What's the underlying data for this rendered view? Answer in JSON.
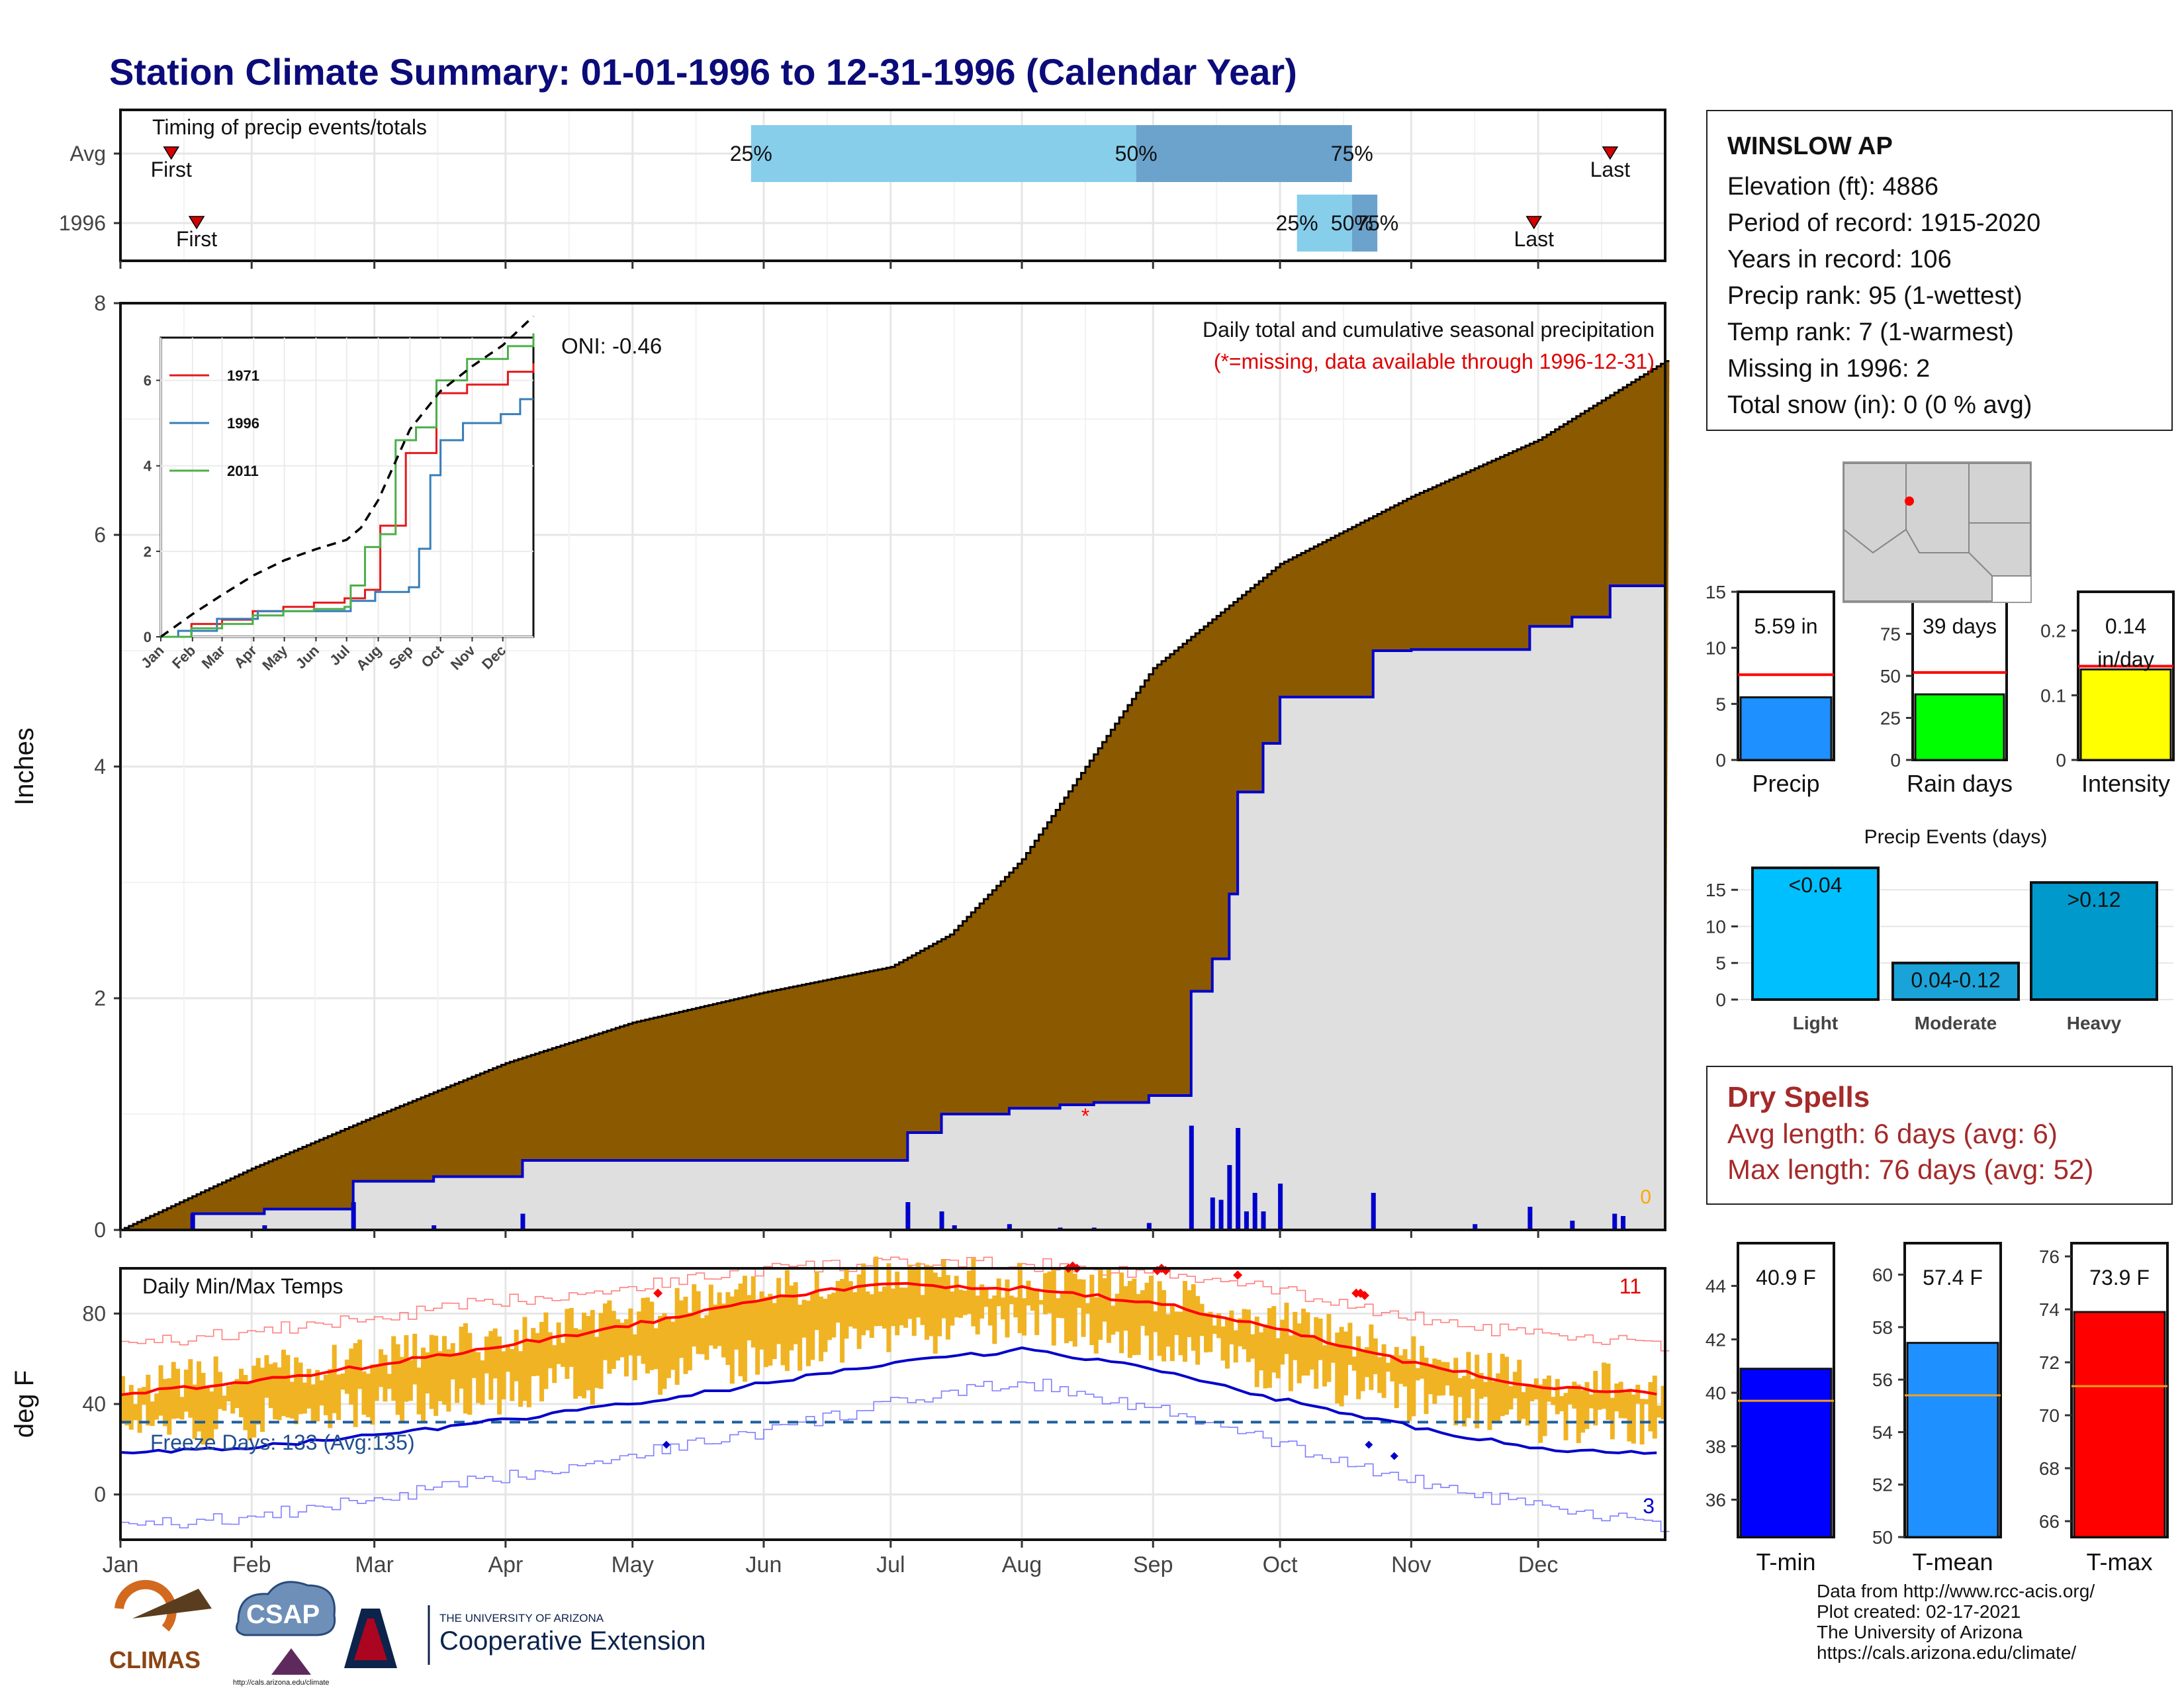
{
  "title": "Station Climate Summary: 01-01-1996 to 12-31-1996 (Calendar Year)",
  "station": {
    "name": "WINSLOW AP",
    "elevation": "Elevation (ft): 4886",
    "period": "Period of record: 1915-2020",
    "years": "Years in record: 106",
    "precip_rank": "Precip rank: 95 (1-wettest)",
    "temp_rank": "Temp rank: 7 (1-warmest)",
    "missing": "Missing in 1996: 2",
    "snow": "Total snow (in): 0 (0 % avg)"
  },
  "dry_spells": {
    "heading": "Dry Spells",
    "avg": "Avg length: 6 days (avg: 6)",
    "max": "Max length: 76 days (avg: 52)"
  },
  "credits": [
    "Data from http://www.rcc-acis.org/",
    "Plot created: 02-17-2021",
    "The University of Arizona",
    "https://cals.arizona.edu/climate/"
  ],
  "logos": {
    "climas": "CLIMAS",
    "csap": "CSAP",
    "csap_url": "http://cals.arizona.edu/climate",
    "ua_line1": "THE UNIVERSITY OF ARIZONA",
    "ua_line2": "Cooperative Extension"
  },
  "months": [
    "Jan",
    "Feb",
    "Mar",
    "Apr",
    "May",
    "Jun",
    "Jul",
    "Aug",
    "Sep",
    "Oct",
    "Nov",
    "Dec"
  ],
  "chart_data": [
    {
      "id": "timing",
      "type": "bar",
      "title": "Timing of precip events/totals",
      "rows": [
        {
          "label": "Avg",
          "first_day": 12,
          "q25_day": 149,
          "q50_day": 240,
          "q75_day": 291,
          "last_day": 352,
          "first_label": "First",
          "last_label": "Last"
        },
        {
          "label": "1996",
          "first_day": 18,
          "q25_day": 278,
          "q50_day": 291,
          "q75_day": 297,
          "last_day": 334,
          "first_label": "First",
          "last_label": "Last"
        }
      ],
      "quartile_labels": [
        "25%",
        "50%",
        "75%"
      ],
      "colors": {
        "light": "#87ceeb",
        "dark": "#6ba3cc",
        "marker": "#d40000"
      }
    },
    {
      "id": "precip",
      "type": "area",
      "title": "Daily total and cumulative seasonal precipitation",
      "subtitle": "(*=missing, data available through 1996-12-31)",
      "ylabel": "Inches",
      "ylim": [
        0,
        8
      ],
      "yticks": [
        0,
        2,
        4,
        6,
        8
      ],
      "oni": "ONI: -0.46",
      "missing_count": "0",
      "cum_avg": [
        [
          0,
          0
        ],
        [
          31,
          0.53
        ],
        [
          60,
          0.98
        ],
        [
          91,
          1.44
        ],
        [
          121,
          1.79
        ],
        [
          152,
          2.05
        ],
        [
          182,
          2.27
        ],
        [
          196,
          2.55
        ],
        [
          213,
          3.2
        ],
        [
          244,
          4.85
        ],
        [
          274,
          5.75
        ],
        [
          305,
          6.33
        ],
        [
          335,
          6.82
        ],
        [
          365,
          7.5
        ]
      ],
      "cum_1996": [
        [
          0,
          0
        ],
        [
          17,
          0
        ],
        [
          17,
          0.14
        ],
        [
          34,
          0.14
        ],
        [
          34,
          0.18
        ],
        [
          55,
          0.18
        ],
        [
          55,
          0.42
        ],
        [
          74,
          0.42
        ],
        [
          74,
          0.46
        ],
        [
          95,
          0.46
        ],
        [
          95,
          0.6
        ],
        [
          186,
          0.6
        ],
        [
          186,
          0.84
        ],
        [
          194,
          0.84
        ],
        [
          194,
          1.0
        ],
        [
          210,
          1.0
        ],
        [
          210,
          1.05
        ],
        [
          222,
          1.05
        ],
        [
          222,
          1.08
        ],
        [
          230,
          1.08
        ],
        [
          230,
          1.1
        ],
        [
          243,
          1.1
        ],
        [
          243,
          1.16
        ],
        [
          253,
          1.16
        ],
        [
          253,
          2.06
        ],
        [
          258,
          2.06
        ],
        [
          258,
          2.34
        ],
        [
          262,
          2.34
        ],
        [
          262,
          2.9
        ],
        [
          264,
          2.9
        ],
        [
          264,
          3.78
        ],
        [
          270,
          3.78
        ],
        [
          270,
          4.2
        ],
        [
          274,
          4.2
        ],
        [
          274,
          4.6
        ],
        [
          296,
          4.6
        ],
        [
          296,
          5.0
        ],
        [
          305,
          5.0
        ],
        [
          305,
          5.01
        ],
        [
          333,
          5.01
        ],
        [
          333,
          5.21
        ],
        [
          343,
          5.21
        ],
        [
          343,
          5.29
        ],
        [
          352,
          5.29
        ],
        [
          352,
          5.56
        ],
        [
          365,
          5.56
        ]
      ],
      "daily_1996": [
        [
          17,
          0.14
        ],
        [
          34,
          0.04
        ],
        [
          55,
          0.24
        ],
        [
          74,
          0.04
        ],
        [
          95,
          0.14
        ],
        [
          186,
          0.24
        ],
        [
          194,
          0.16
        ],
        [
          197,
          0.04
        ],
        [
          210,
          0.05
        ],
        [
          222,
          0.02
        ],
        [
          230,
          0.02
        ],
        [
          243,
          0.06
        ],
        [
          253,
          0.9
        ],
        [
          258,
          0.28
        ],
        [
          260,
          0.26
        ],
        [
          262,
          0.56
        ],
        [
          264,
          0.88
        ],
        [
          266,
          0.16
        ],
        [
          268,
          0.32
        ],
        [
          270,
          0.16
        ],
        [
          274,
          0.4
        ],
        [
          296,
          0.32
        ],
        [
          320,
          0.05
        ],
        [
          333,
          0.2
        ],
        [
          343,
          0.08
        ],
        [
          353,
          0.14
        ],
        [
          355,
          0.12
        ]
      ],
      "missing_day": 228,
      "missing_value": 1.0,
      "colors": {
        "avg": "#8b5a00",
        "year": "#dfdfdf",
        "line": "#0000cc",
        "missing": "#ff0000"
      }
    },
    {
      "id": "precip-inset",
      "type": "line",
      "x": [
        "Jan",
        "Feb",
        "Mar",
        "Apr",
        "May",
        "Jun",
        "Jul",
        "Aug",
        "Sep",
        "Oct",
        "Nov",
        "Dec"
      ],
      "ylim": [
        0,
        7
      ],
      "yticks": [
        0,
        2,
        4,
        6
      ],
      "series": [
        {
          "name": "1971",
          "color": "#e41a1c",
          "values": [
            [
              0,
              0
            ],
            [
              30,
              0.3
            ],
            [
              60,
              0.4
            ],
            [
              90,
              0.6
            ],
            [
              120,
              0.7
            ],
            [
              150,
              0.8
            ],
            [
              180,
              0.9
            ],
            [
              200,
              1.1
            ],
            [
              215,
              2.6
            ],
            [
              230,
              2.6
            ],
            [
              240,
              4.3
            ],
            [
              255,
              4.3
            ],
            [
              270,
              5.7
            ],
            [
              300,
              5.9
            ],
            [
              340,
              6.2
            ],
            [
              365,
              6.4
            ]
          ]
        },
        {
          "name": "1996",
          "color": "#377eb8",
          "values": [
            [
              0,
              0
            ],
            [
              17,
              0.14
            ],
            [
              55,
              0.42
            ],
            [
              95,
              0.6
            ],
            [
              186,
              0.84
            ],
            [
              210,
              1.05
            ],
            [
              243,
              1.16
            ],
            [
              253,
              2.06
            ],
            [
              264,
              3.78
            ],
            [
              274,
              4.6
            ],
            [
              296,
              5.0
            ],
            [
              333,
              5.21
            ],
            [
              352,
              5.56
            ],
            [
              365,
              5.56
            ]
          ]
        },
        {
          "name": "2011",
          "color": "#4daf4a",
          "values": [
            [
              0,
              0
            ],
            [
              30,
              0.2
            ],
            [
              60,
              0.3
            ],
            [
              90,
              0.5
            ],
            [
              120,
              0.6
            ],
            [
              150,
              0.65
            ],
            [
              180,
              0.7
            ],
            [
              186,
              1.2
            ],
            [
              200,
              2.1
            ],
            [
              215,
              2.4
            ],
            [
              230,
              4.6
            ],
            [
              250,
              4.9
            ],
            [
              270,
              6.0
            ],
            [
              300,
              6.5
            ],
            [
              340,
              6.8
            ],
            [
              365,
              7.1
            ]
          ]
        }
      ],
      "avg_values": [
        [
          0,
          0
        ],
        [
          31,
          0.53
        ],
        [
          60,
          0.98
        ],
        [
          91,
          1.44
        ],
        [
          121,
          1.79
        ],
        [
          152,
          2.05
        ],
        [
          182,
          2.27
        ],
        [
          196,
          2.55
        ],
        [
          213,
          3.2
        ],
        [
          244,
          4.85
        ],
        [
          274,
          5.75
        ],
        [
          305,
          6.33
        ],
        [
          335,
          6.82
        ],
        [
          365,
          7.5
        ]
      ]
    },
    {
      "id": "temps",
      "type": "line",
      "title": "Daily Min/Max Temps",
      "ylabel": "deg F",
      "ylim": [
        -20,
        100
      ],
      "yticks": [
        0,
        40,
        80
      ],
      "freeze_label": "Freeze Days: 133 (Avg:135)",
      "freeze_line": 32,
      "high_count": "11",
      "low_count": "3",
      "norm_max": [
        [
          0,
          44
        ],
        [
          31,
          50
        ],
        [
          60,
          57
        ],
        [
          91,
          66
        ],
        [
          121,
          75
        ],
        [
          152,
          87
        ],
        [
          182,
          93
        ],
        [
          213,
          91
        ],
        [
          244,
          85
        ],
        [
          274,
          73
        ],
        [
          305,
          58
        ],
        [
          335,
          48
        ],
        [
          365,
          44
        ]
      ],
      "norm_min": [
        [
          0,
          18
        ],
        [
          31,
          21
        ],
        [
          60,
          26
        ],
        [
          91,
          33
        ],
        [
          121,
          40
        ],
        [
          152,
          49
        ],
        [
          182,
          58
        ],
        [
          213,
          64
        ],
        [
          244,
          56
        ],
        [
          274,
          42
        ],
        [
          305,
          30
        ],
        [
          335,
          20
        ],
        [
          365,
          18
        ]
      ],
      "rec_max": [
        [
          0,
          66
        ],
        [
          31,
          72
        ],
        [
          60,
          78
        ],
        [
          91,
          86
        ],
        [
          121,
          92
        ],
        [
          152,
          100
        ],
        [
          182,
          102
        ],
        [
          213,
          102
        ],
        [
          244,
          98
        ],
        [
          274,
          90
        ],
        [
          305,
          78
        ],
        [
          335,
          70
        ],
        [
          365,
          66
        ]
      ],
      "rec_min": [
        [
          0,
          -14
        ],
        [
          31,
          -10
        ],
        [
          60,
          -2
        ],
        [
          91,
          8
        ],
        [
          121,
          18
        ],
        [
          152,
          28
        ],
        [
          182,
          40
        ],
        [
          213,
          50
        ],
        [
          244,
          38
        ],
        [
          274,
          22
        ],
        [
          305,
          6
        ],
        [
          335,
          -6
        ],
        [
          365,
          -14
        ]
      ],
      "record_highs": [
        [
          127,
          89
        ],
        [
          224,
          100
        ],
        [
          225,
          101
        ],
        [
          226,
          100
        ],
        [
          245,
          99
        ],
        [
          246,
          100
        ],
        [
          247,
          99
        ],
        [
          264,
          97
        ],
        [
          292,
          89
        ],
        [
          293,
          89
        ],
        [
          294,
          88
        ]
      ],
      "record_lows": [
        [
          129,
          22
        ],
        [
          295,
          22
        ],
        [
          301,
          17
        ]
      ],
      "colors": {
        "bars": "#f0b323",
        "max": "#ff0000",
        "min": "#0000cc",
        "freeze": "#1f5f9f"
      }
    },
    {
      "id": "precip-total",
      "type": "bar",
      "categories": [
        "Precip"
      ],
      "values": [
        5.59
      ],
      "normal": 7.6,
      "ylim": [
        0,
        15
      ],
      "yticks": [
        0,
        5,
        10,
        15
      ],
      "label": "5.59 in",
      "color": "#1e90ff"
    },
    {
      "id": "rain-days",
      "type": "bar",
      "categories": [
        "Rain days"
      ],
      "values": [
        39
      ],
      "normal": 52,
      "ylim": [
        0,
        100
      ],
      "yticks": [
        0,
        25,
        50,
        75,
        100
      ],
      "label": "39 days",
      "color": "#00ff00"
    },
    {
      "id": "intensity",
      "type": "bar",
      "categories": [
        "Intensity"
      ],
      "values": [
        0.14
      ],
      "normal": 0.145,
      "ylim": [
        0,
        0.26
      ],
      "yticks": [
        0.0,
        0.1,
        0.2
      ],
      "label": "0.14",
      "label2": "in/day",
      "color": "#ffff00"
    },
    {
      "id": "events",
      "type": "bar",
      "title": "Precip Events (days)",
      "categories": [
        "Light",
        "Moderate",
        "Heavy"
      ],
      "values": [
        18,
        5,
        16
      ],
      "labels": [
        "<0.04",
        "0.04-0.12",
        ">0.12"
      ],
      "ylim": [
        0,
        19
      ],
      "yticks": [
        0,
        5,
        10,
        15
      ],
      "colors": [
        "#00bfff",
        "#1aa3d9",
        "#0099cc"
      ]
    },
    {
      "id": "tmin",
      "type": "bar",
      "categories": [
        "T-min"
      ],
      "values": [
        40.9
      ],
      "normal": 39.7,
      "ylim": [
        34.6,
        45.6
      ],
      "yticks": [
        36,
        38,
        40,
        42,
        44
      ],
      "label": "40.9 F",
      "color": "#0000ff"
    },
    {
      "id": "tmean",
      "type": "bar",
      "categories": [
        "T-mean"
      ],
      "values": [
        57.4
      ],
      "normal": 55.4,
      "ylim": [
        50,
        61.2
      ],
      "yticks": [
        50,
        52,
        54,
        56,
        58,
        60
      ],
      "label": "57.4 F",
      "color": "#1e90ff"
    },
    {
      "id": "tmax",
      "type": "bar",
      "categories": [
        "T-max"
      ],
      "values": [
        73.9
      ],
      "normal": 71.1,
      "ylim": [
        65.4,
        76.5
      ],
      "yticks": [
        66,
        68,
        70,
        72,
        74,
        76
      ],
      "label": "73.9 F",
      "color": "#ff0000"
    }
  ]
}
